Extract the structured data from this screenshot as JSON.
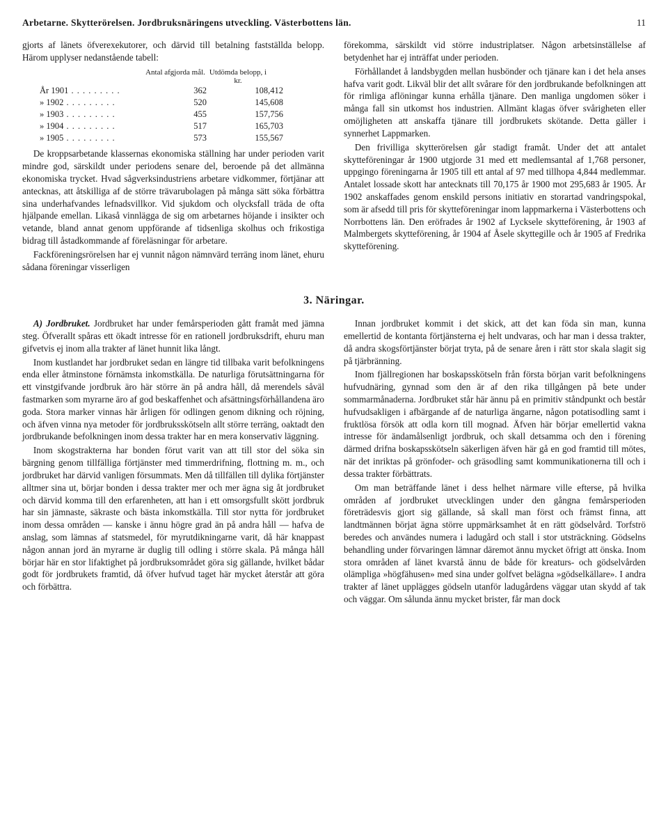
{
  "header": {
    "title": "Arbetarne. Skytterörelsen. Jordbruksnäringens utveckling. Västerbottens län.",
    "page": "11"
  },
  "top": {
    "left": {
      "intro": "gjorts af länets öfverexekutorer, och därvid till betalning fastställda belopp. Härom upplyser nedanstående tabell:",
      "table": {
        "head_col1": "Antal afgjorda mål.",
        "head_col2": "Utdömda belopp, i kr.",
        "rows": [
          {
            "year": "År 1901",
            "count": "362",
            "amount": "108,412"
          },
          {
            "year": "» 1902",
            "count": "520",
            "amount": "145,608"
          },
          {
            "year": "» 1903",
            "count": "455",
            "amount": "157,756"
          },
          {
            "year": "» 1904",
            "count": "517",
            "amount": "165,703"
          },
          {
            "year": "» 1905",
            "count": "573",
            "amount": "155,567"
          }
        ]
      },
      "p1": "De kroppsarbetande klassernas ekonomiska ställning har under perioden varit mindre god, särskildt under periodens senare del, beroende på det allmänna ekonomiska trycket. Hvad sågverksindustriens arbetare vidkommer, förtjänar att antecknas, att åtskilliga af de större trävarubolagen på många sätt söka förbättra sina underhafvandes lefnadsvillkor. Vid sjukdom och olycksfall träda de ofta hjälpande emellan. Likaså vinnlägga de sig om arbetarnes höjande i insikter och vetande, bland annat genom uppförande af tidsenliga skolhus och frikostiga bidrag till åstadkommande af föreläsningar för arbetare.",
      "p2": "Fackföreningsrörelsen har ej vunnit någon nämnvärd terräng inom länet, ehuru sådana föreningar visserligen"
    },
    "right": {
      "p1": "förekomma, särskildt vid större industriplatser. Någon arbetsinställelse af betydenhet har ej inträffat under perioden.",
      "p2": "Förhållandet å landsbygden mellan husbönder och tjänare kan i det hela anses hafva varit godt. Likväl blir det allt svårare för den jordbrukande befolkningen att för rimliga aflöningar kunna erhålla tjänare. Den manliga ungdomen söker i många fall sin utkomst hos industrien. Allmänt klagas öfver svårigheten eller omöjligheten att anskaffa tjänare till jordbrukets skötande. Detta gäller i synnerhet Lappmarken.",
      "p3": "Den frivilliga skytterörelsen går stadigt framåt. Under det att antalet skytteföreningar år 1900 utgjorde 31 med ett medlemsantal af 1,768 personer, uppgingo föreningarna år 1905 till ett antal af 97 med tillhopa 4,844 medlemmar. Antalet lossade skott har antecknats till 70,175 år 1900 mot 295,683 år 1905. År 1902 anskaffades genom enskild persons initiativ en storartad vandringspokal, som är afsedd till pris för skytteföreningar inom lappmarkerna i Västerbottens och Norrbottens län. Den eröfrades år 1902 af Lycksele skytteförening, år 1903 af Malmbergets skytteförening, år 1904 af Åsele skyttegille och år 1905 af Fredrika skytteförening."
    }
  },
  "section3": {
    "heading": "3. Näringar.",
    "left": {
      "p1_lead": "A) Jordbruket.",
      "p1": " Jordbruket har under femårsperioden gått framåt med jämna steg. Öfverallt spåras ett ökadt intresse för en rationell jordbruksdrift, ehuru man gifvetvis ej inom alla trakter af länet hunnit lika långt.",
      "p2": "Inom kustlandet har jordbruket sedan en längre tid tillbaka varit befolkningens enda eller åtminstone förnämsta inkomstkälla. De naturliga förutsättningarna för ett vinstgifvande jordbruk äro här större än på andra håll, då merendels såväl fastmarken som myrarne äro af god beskaffenhet och afsättningsförhållandena äro goda. Stora marker vinnas här årligen för odlingen genom dikning och röjning, och äfven vinna nya metoder för jordbruksskötseln allt större terräng, oaktadt den jordbrukande befolkningen inom dessa trakter har en mera konservativ läggning.",
      "p3": "Inom skogstrakterna har bonden förut varit van att till stor del söka sin bärgning genom tillfälliga förtjänster med timmerdrifning, flottning m. m., och jordbruket har därvid vanligen försummats. Men då tillfällen till dylika förtjänster alltmer sina ut, börjar bonden i dessa trakter mer och mer ägna sig åt jordbruket och därvid komma till den erfarenheten, att han i ett omsorgsfullt skött jordbruk har sin jämnaste, säkraste och bästa inkomstkälla. Till stor nytta för jordbruket inom dessa områden — kanske i ännu högre grad än på andra håll — hafva de anslag, som lämnas af statsmedel, för myrutdikningarne varit, då här knappast någon annan jord än myrarne är duglig till odling i större skala. På många håll börjar här en stor lifaktighet på jordbruksområdet göra sig gällande, hvilket bådar godt för jordbrukets framtid, då öfver hufvud taget här mycket återstår att göra och förbättra."
    },
    "right": {
      "p1": "Innan jordbruket kommit i det skick, att det kan föda sin man, kunna emellertid de kontanta förtjänsterna ej helt undvaras, och har man i dessa trakter, då andra skogsförtjänster börjat tryta, på de senare åren i rätt stor skala slagit sig på tjärbränning.",
      "p2": "Inom fjällregionen har boskapsskötseln från första början varit befolkningens hufvudnäring, gynnad som den är af den rika tillgången på bete under sommarmånaderna. Jordbruket står här ännu på en primitiv ståndpunkt och består hufvudsakligen i afbärgande af de naturliga ängarne, någon potatisodling samt i fruktlösa försök att odla korn till mognad. Äfven här börjar emellertid vakna intresse för ändamålsenligt jordbruk, och skall detsamma och den i förening därmed drifna boskapsskötseln säkerligen äfven här gå en god framtid till mötes, när det inriktas på grönfoder- och gräsodling samt kommunikationerna till och i dessa trakter förbättrats.",
      "p3": "Om man beträffande länet i dess helhet närmare ville efterse, på hvilka områden af jordbruket utvecklingen under den gångna femårsperioden företrädesvis gjort sig gällande, så skall man först och främst finna, att landtmännen börjat ägna större uppmärksamhet åt en rätt gödselvård. Torfströ beredes och användes numera i ladugård och stall i stor utsträckning. Gödselns behandling under förvaringen lämnar däremot ännu mycket öfrigt att önska. Inom stora områden af länet kvarstå ännu de både för kreaturs- och gödselvården olämpliga »högfähusen» med sina under golfvet belägna »gödselkällare». I andra trakter af länet upplägges gödseln utanför ladugårdens väggar utan skydd af tak och väggar. Om sålunda ännu mycket brister, får man dock"
    }
  }
}
